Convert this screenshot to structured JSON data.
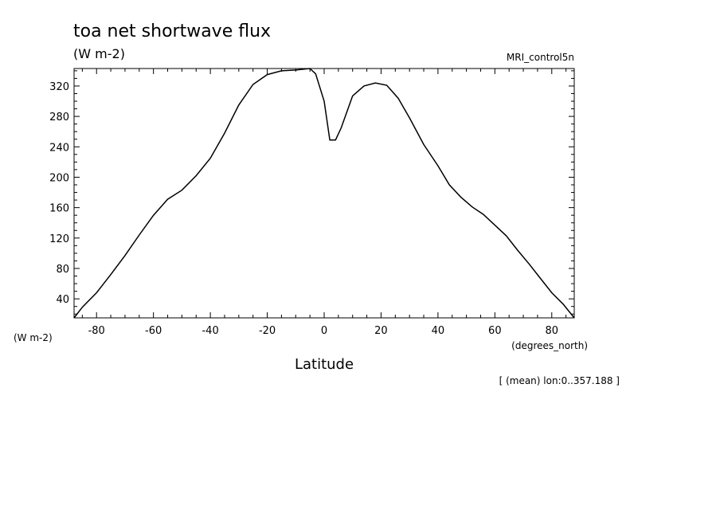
{
  "chart_data": {
    "type": "line",
    "title": "toa net shortwave flux",
    "units": "(W m-2)",
    "dataset_label": "MRI_control5n",
    "ylabel": "(W m-2)",
    "xlabel": "Latitude",
    "x_unit_label": "(degrees_north)",
    "footnote": "[ (mean) lon:0..357.188 ]",
    "xlim": [
      -87.9,
      87.9
    ],
    "ylim": [
      15,
      343
    ],
    "x_ticks": [
      -80,
      -60,
      -40,
      -20,
      0,
      20,
      40,
      60,
      80
    ],
    "x_tick_labels": [
      "-80",
      "-60",
      "-40",
      "-20",
      "0",
      "20",
      "40",
      "60",
      "80"
    ],
    "y_ticks": [
      40,
      80,
      120,
      160,
      200,
      240,
      280,
      320
    ],
    "y_tick_labels": [
      "40",
      "80",
      "120",
      "160",
      "200",
      "240",
      "280",
      "320"
    ],
    "series": [
      {
        "color": "#000000",
        "x": [
          -87.9,
          -85,
          -80,
          -75,
          -70,
          -65,
          -60,
          -55,
          -50,
          -45,
          -40,
          -35,
          -30,
          -25,
          -20,
          -15,
          -10,
          -5,
          -3,
          0,
          2,
          4,
          6,
          10,
          14,
          18,
          22,
          26,
          30,
          35,
          40,
          44,
          48,
          52,
          56,
          60,
          64,
          68,
          72,
          76,
          80,
          84,
          87.9
        ],
        "y": [
          15,
          29,
          48,
          72,
          97,
          124,
          150,
          171,
          183,
          202,
          225,
          258,
          295,
          322,
          335,
          340,
          341,
          343,
          336,
          300,
          249,
          249,
          265,
          307,
          320,
          324,
          321,
          304,
          278,
          243,
          215,
          190,
          174,
          161,
          151,
          137,
          123,
          104,
          86,
          67,
          48,
          33,
          15
        ]
      }
    ]
  }
}
